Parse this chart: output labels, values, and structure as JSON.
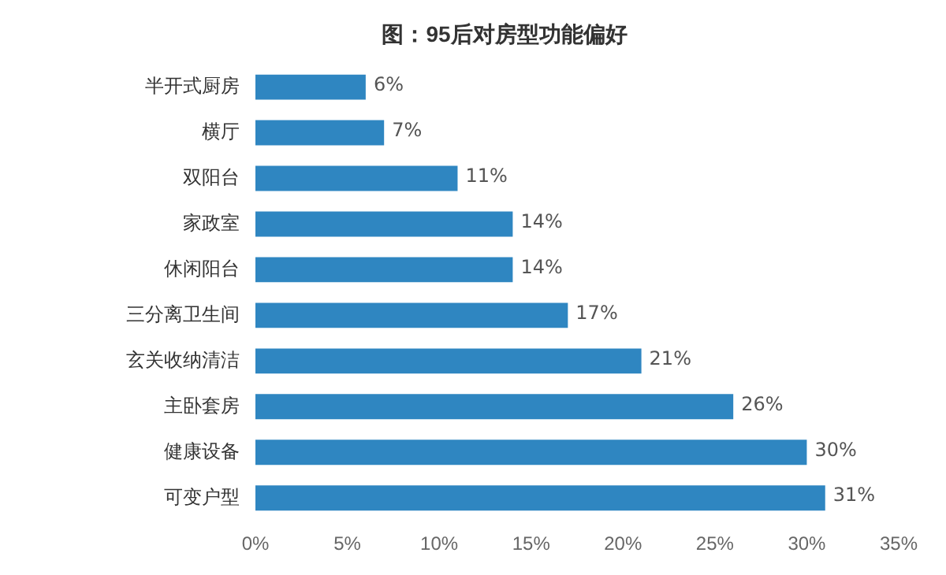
{
  "chart_data": {
    "type": "bar",
    "orientation": "horizontal",
    "title": "图：95后对房型功能偏好",
    "categories": [
      "半开式厨房",
      "横厅",
      "双阳台",
      "家政室",
      "休闲阳台",
      "三分离卫生间",
      "玄关收纳清洁",
      "主卧套房",
      "健康设备",
      "可变户型"
    ],
    "values": [
      6,
      7,
      11,
      14,
      14,
      17,
      21,
      26,
      30,
      31
    ],
    "value_labels": [
      "6%",
      "7%",
      "11%",
      "14%",
      "14%",
      "17%",
      "21%",
      "26%",
      "30%",
      "31%"
    ],
    "color": "#2f86c1",
    "xlim": [
      0,
      35
    ],
    "xticks": [
      {
        "value": 0,
        "label": "0%"
      },
      {
        "value": 5,
        "label": "5%"
      },
      {
        "value": 10,
        "label": "10%"
      },
      {
        "value": 15,
        "label": "15%"
      },
      {
        "value": 20,
        "label": "20%"
      },
      {
        "value": 25,
        "label": "25%"
      },
      {
        "value": 30,
        "label": "30%"
      },
      {
        "value": 35,
        "label": "35%"
      }
    ],
    "grid": false,
    "legend": false
  }
}
